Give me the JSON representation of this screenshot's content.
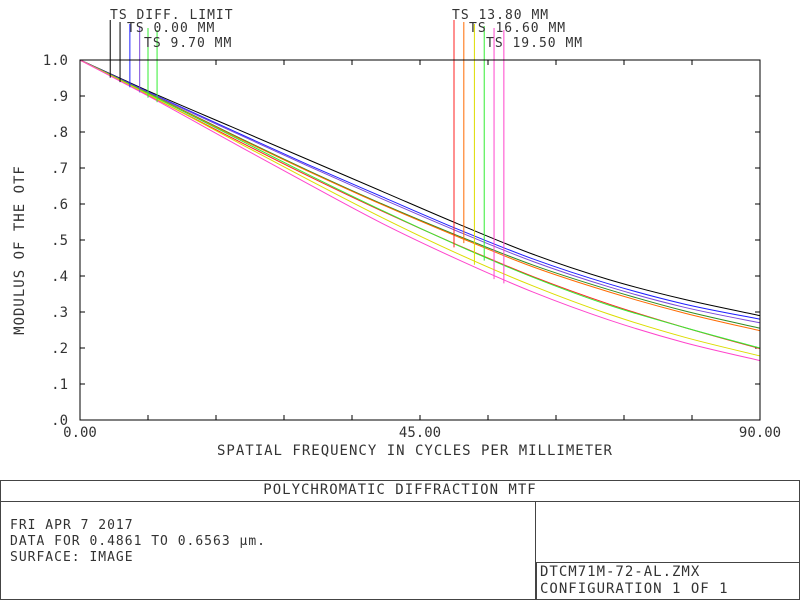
{
  "footer": {
    "title": "POLYCHROMATIC DIFFRACTION MTF",
    "info_lines": [
      "FRI APR 7 2017",
      "DATA FOR 0.4861 TO 0.6563 µm.",
      "SURFACE: IMAGE"
    ],
    "file_lines": [
      "DTCM71M-72-AL.ZMX",
      "CONFIGURATION 1 OF 1"
    ]
  },
  "chart_data": {
    "type": "line",
    "title": "POLYCHROMATIC DIFFRACTION MTF",
    "xlabel": "SPATIAL FREQUENCY IN CYCLES PER MILLIMETER",
    "ylabel": "MODULUS OF THE OTF",
    "xlim": [
      0,
      90
    ],
    "ylim": [
      0,
      1
    ],
    "x_ticks": [
      "0.00",
      "45.00",
      "90.00"
    ],
    "y_ticks": [
      ".0",
      ".1",
      ".2",
      ".3",
      ".4",
      ".5",
      ".6",
      ".7",
      ".8",
      ".9",
      "1.0"
    ],
    "x": [
      0,
      10,
      20,
      30,
      40,
      50,
      60,
      70,
      80,
      90
    ],
    "legend": [
      "TS DIFF. LIMIT",
      "TS 0.00 MM",
      "TS 9.70 MM",
      "TS 13.80 MM",
      "TS 16.60 MM",
      "TS 19.50 MM"
    ],
    "series": [
      {
        "color": "#000000",
        "values": [
          1.0,
          0.905,
          0.815,
          0.725,
          0.635,
          0.545,
          0.46,
          0.39,
          0.335,
          0.29
        ]
      },
      {
        "color": "#1f1fff",
        "values": [
          1.0,
          0.902,
          0.806,
          0.711,
          0.62,
          0.53,
          0.447,
          0.378,
          0.322,
          0.28
        ]
      },
      {
        "color": "#7a4ad8",
        "values": [
          1.0,
          0.9,
          0.803,
          0.707,
          0.614,
          0.524,
          0.44,
          0.37,
          0.313,
          0.27
        ]
      },
      {
        "color": "#2e8b22",
        "values": [
          1.0,
          0.898,
          0.795,
          0.695,
          0.6,
          0.512,
          0.43,
          0.362,
          0.303,
          0.255
        ]
      },
      {
        "color": "#ff6a00",
        "values": [
          1.0,
          0.897,
          0.793,
          0.693,
          0.598,
          0.509,
          0.425,
          0.356,
          0.297,
          0.248
        ]
      },
      {
        "color": "#ff2020",
        "values": [
          1.0,
          0.892,
          0.785,
          0.68,
          0.58,
          0.486,
          0.398,
          0.322,
          0.257,
          0.198
        ]
      },
      {
        "color": "#33ee33",
        "values": [
          1.0,
          0.896,
          0.79,
          0.684,
          0.582,
          0.485,
          0.396,
          0.319,
          0.257,
          0.2
        ]
      },
      {
        "color": "#dddd00",
        "values": [
          1.0,
          0.893,
          0.781,
          0.67,
          0.562,
          0.462,
          0.372,
          0.294,
          0.23,
          0.178
        ]
      },
      {
        "color": "#ff44cc",
        "values": [
          1.0,
          0.889,
          0.773,
          0.658,
          0.546,
          0.446,
          0.355,
          0.278,
          0.215,
          0.165
        ]
      }
    ],
    "markers": [
      {
        "color": "#000000",
        "x": 4.0
      },
      {
        "color": "#000000",
        "x": 5.3
      },
      {
        "color": "#1f1fff",
        "x": 6.6
      },
      {
        "color": "#7a4ad8",
        "x": 7.9
      },
      {
        "color": "#33ee33",
        "x": 9.0
      },
      {
        "color": "#33ee33",
        "x": 10.2
      },
      {
        "color": "#ff2020",
        "x": 49.5
      },
      {
        "color": "#ff6a00",
        "x": 50.8
      },
      {
        "color": "#dddd00",
        "x": 52.2
      },
      {
        "color": "#33ee33",
        "x": 53.5
      },
      {
        "color": "#ff44cc",
        "x": 54.8
      },
      {
        "color": "#ff44cc",
        "x": 56.1
      }
    ]
  }
}
